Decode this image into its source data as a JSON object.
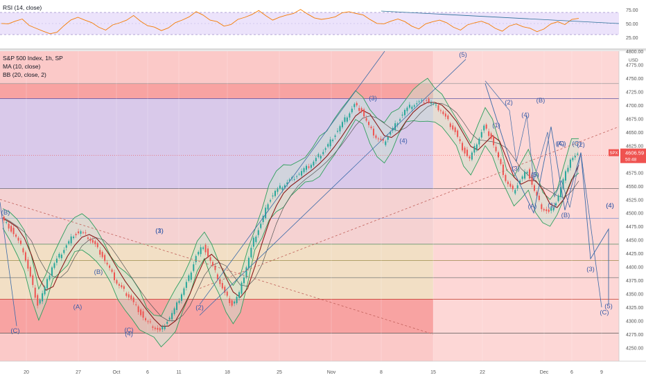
{
  "colors": {
    "bg": "#ffffff",
    "pink_zone": "#fdd7d6",
    "red_band": "#f8a3a2",
    "purple_zone": "#d9c9ea",
    "tan_band": "#f2dfc5",
    "rsi_line": "#f57c00",
    "rsi_band": "#ece3fb",
    "bb_line": "#2f9e5e",
    "bb_fill": "#c7e3cf",
    "ma_line": "#8b1a1a",
    "wave_label": "#3a5ca8",
    "up_candle": "#26a69a",
    "down_candle": "#ef5350",
    "price_tag": "#ef5350"
  },
  "indicators": {
    "rsi_label": "RSI (14, close)",
    "symbol_label": "S&P 500 Index, 1h, SP",
    "ma_label": "MA (10, close)",
    "bb_label": "BB (20, close, 2)"
  },
  "price_tag": {
    "symbol": "SPX",
    "price": "4606.59",
    "countdown": "50:48"
  },
  "chart_data": [
    {
      "type": "line",
      "title": "RSI (14, close)",
      "yticks": [
        "75.00",
        "50.00",
        "25.00"
      ],
      "ylim": [
        10,
        90
      ],
      "bands": [
        30,
        70
      ],
      "values": [
        52,
        48,
        55,
        60,
        45,
        42,
        38,
        30,
        35,
        48,
        55,
        62,
        58,
        50,
        44,
        40,
        46,
        52,
        58,
        63,
        55,
        48,
        42,
        38,
        44,
        50,
        57,
        64,
        70,
        66,
        58,
        52,
        46,
        50,
        56,
        62,
        68,
        72,
        65,
        58,
        60,
        66,
        70,
        74,
        68,
        62,
        56,
        60,
        64,
        68,
        72,
        70,
        64,
        58,
        52,
        48,
        55,
        60,
        52,
        46,
        42,
        48,
        54,
        58,
        50,
        44,
        40,
        46,
        52,
        56,
        48,
        42,
        38,
        44,
        50,
        46,
        40,
        36,
        42,
        48,
        54,
        50,
        56,
        60
      ]
    },
    {
      "type": "candlestick",
      "title": "S&P 500 Index, 1h, SP",
      "ylabel": "USD",
      "ylim": [
        4225,
        4800
      ],
      "yticks": [
        "4800.00",
        "4775.00",
        "4750.00",
        "4725.00",
        "4700.00",
        "4675.00",
        "4650.00",
        "4625.00",
        "4600.00",
        "4575.00",
        "4550.00",
        "4525.00",
        "4500.00",
        "4475.00",
        "4450.00",
        "4425.00",
        "4400.00",
        "4375.00",
        "4350.00",
        "4325.00",
        "4300.00",
        "4275.00",
        "4250.00"
      ],
      "xticks": [
        "20",
        "27",
        "Oct",
        "6",
        "11",
        "18",
        "25",
        "Nov",
        "8",
        "15",
        "22",
        "Dec",
        "6",
        "9"
      ],
      "close": [
        4490,
        4475,
        4455,
        4430,
        4380,
        4330,
        4360,
        4400,
        4420,
        4440,
        4460,
        4465,
        4455,
        4440,
        4420,
        4395,
        4370,
        4355,
        4340,
        4320,
        4300,
        4290,
        4280,
        4300,
        4320,
        4350,
        4380,
        4420,
        4440,
        4410,
        4380,
        4350,
        4330,
        4350,
        4400,
        4450,
        4480,
        4520,
        4540,
        4550,
        4560,
        4570,
        4580,
        4590,
        4605,
        4620,
        4640,
        4660,
        4680,
        4700,
        4690,
        4660,
        4640,
        4630,
        4650,
        4670,
        4690,
        4700,
        4705,
        4710,
        4700,
        4690,
        4670,
        4650,
        4620,
        4600,
        4630,
        4660,
        4640,
        4600,
        4560,
        4540,
        4560,
        4580,
        4540,
        4510,
        4500,
        4520,
        4560,
        4600,
        4606
      ],
      "wave_labels": [
        "(B)",
        "(C)",
        "(A)",
        "(B)",
        "(C)",
        "(1)",
        "(2)",
        "(3)",
        "(4)",
        "(5)",
        "(1)",
        "(2)",
        "(3)",
        "(4)",
        "(5)",
        "(A)",
        "(B)",
        "(C)",
        "(1)",
        "(2)",
        "(B)",
        "(A)",
        "(3)",
        "(4)",
        "(5)",
        "(C)",
        "(4)",
        "(3)",
        "(5)",
        "(C)",
        "(4)"
      ],
      "series": [
        {
          "name": "MA (10, close)"
        },
        {
          "name": "BB (20, close, 2)"
        }
      ]
    }
  ]
}
